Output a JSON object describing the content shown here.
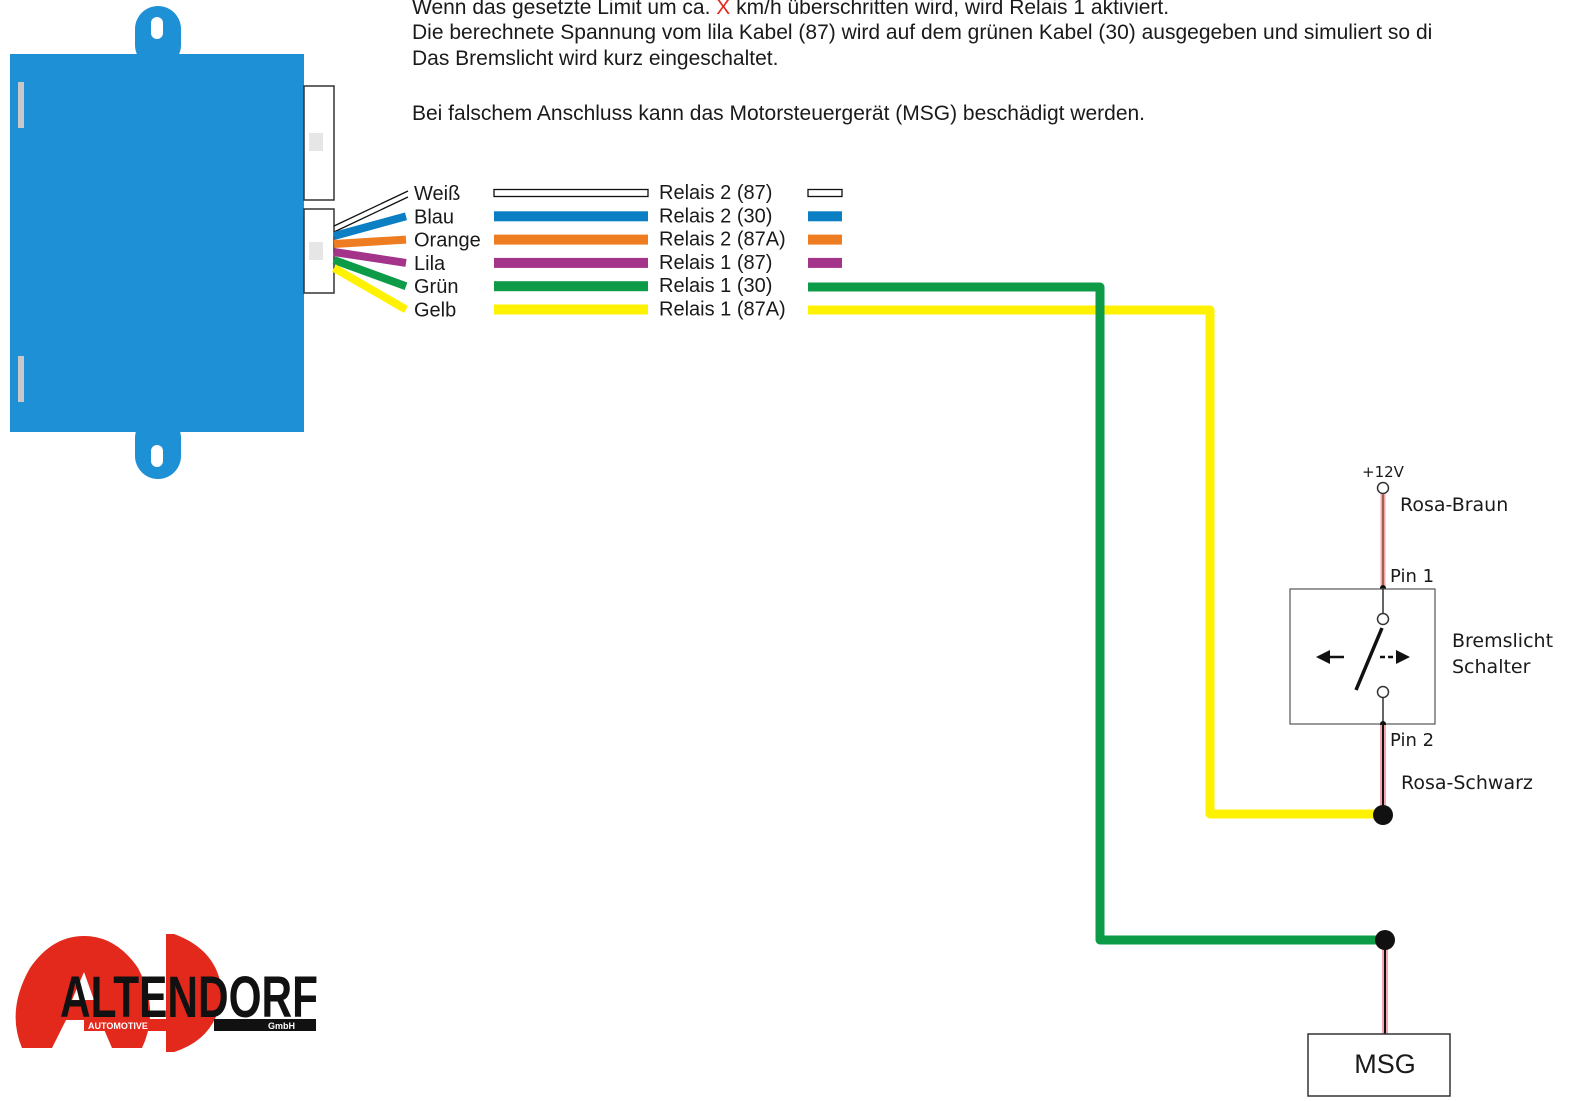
{
  "intro": {
    "line1_pre": "Wenn das gesetzte Limit um ca. ",
    "line1_x": "X",
    "line1_post": " km/h überschritten wird, wird Relais 1 aktiviert.",
    "line2": "Die berechnete Spannung vom lila Kabel (87) wird auf dem grünen Kabel (30) ausgegeben und simuliert so di",
    "line3": "Das Bremslicht wird kurz eingeschaltet.",
    "warning": "Bei falschem Anschluss kann das Motorsteuergerät (MSG) beschädigt werden."
  },
  "wires": [
    {
      "color_name": "Weiß",
      "relay": "Relais 2 (87)",
      "color": "#ffffff"
    },
    {
      "color_name": "Blau",
      "relay": "Relais 2 (30)",
      "color": "#0a7fc4"
    },
    {
      "color_name": "Orange",
      "relay": "Relais 2 (87A)",
      "color": "#ee7d22"
    },
    {
      "color_name": "Lila",
      "relay": "Relais 1 (87)",
      "color": "#a3348a"
    },
    {
      "color_name": "Grün",
      "relay": "Relais 1 (30)",
      "color": "#0e9b48"
    },
    {
      "color_name": "Gelb",
      "relay": "Relais 1 (87A)",
      "color": "#fff200"
    }
  ],
  "switch": {
    "supply": "+12V",
    "top_wire": "Rosa-Braun",
    "pin1": "Pin 1",
    "pin2": "Pin 2",
    "label_line1": "Bremslicht",
    "label_line2": "Schalter",
    "bottom_wire": "Rosa-Schwarz"
  },
  "msg": {
    "label": "MSG"
  },
  "logo": {
    "main": "ALTENDORF",
    "sub_left": "AUTOMOTIVE",
    "sub_right": "GmbH"
  },
  "colors": {
    "module_blue": "#1e90d6",
    "green": "#0e9b48",
    "yellow": "#fff200",
    "logo_red": "#e3281c",
    "pink": "#f2a7b0"
  }
}
